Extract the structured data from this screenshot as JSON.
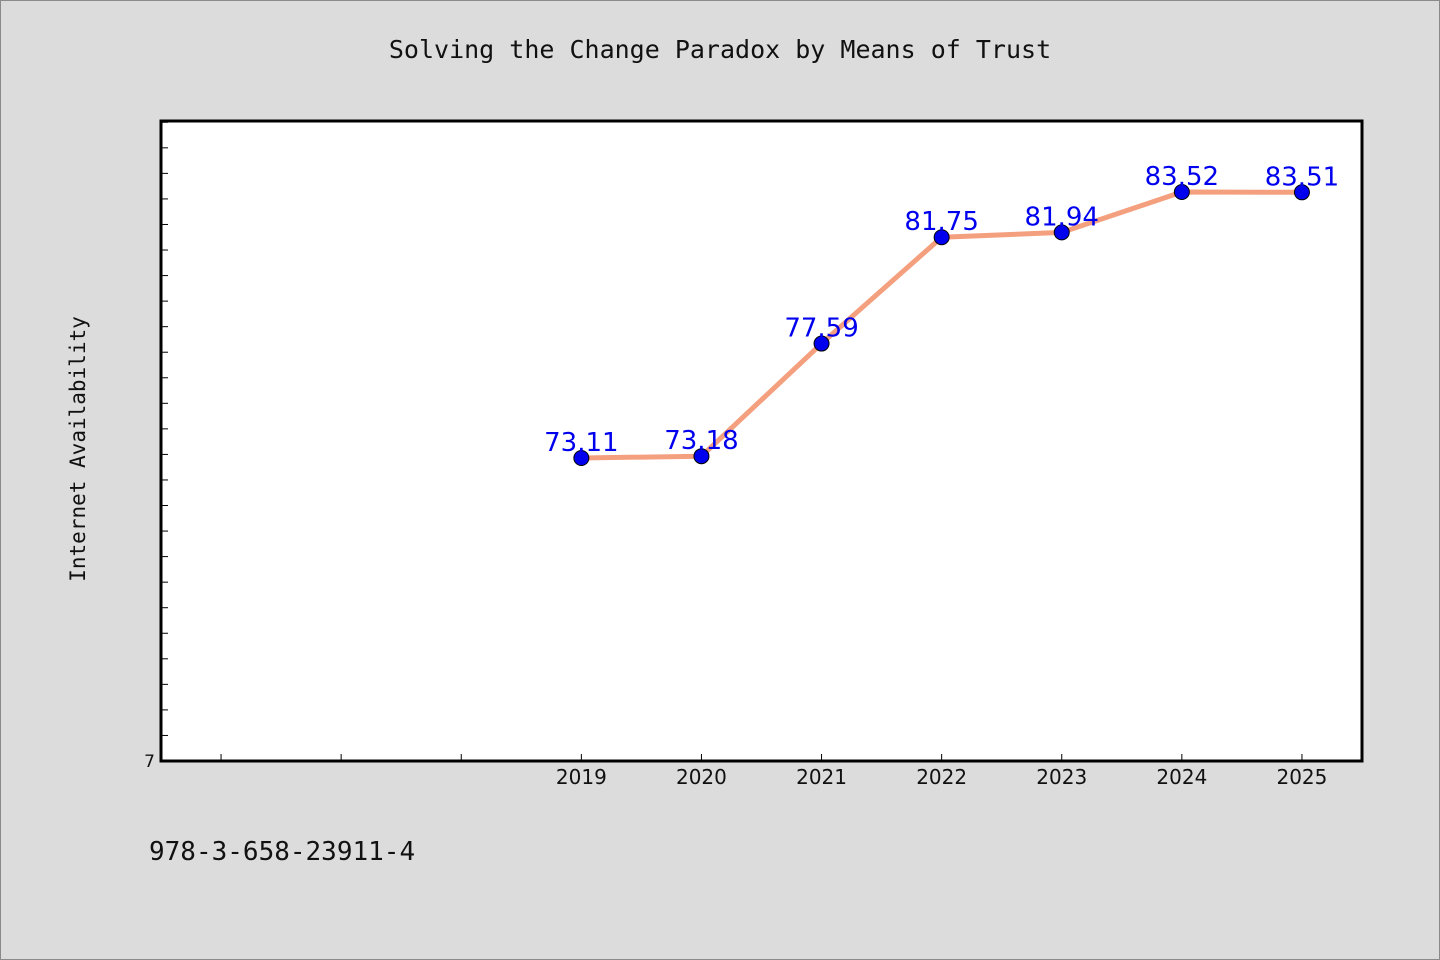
{
  "chart_data": {
    "type": "line",
    "title": "Solving the Change Paradox by Means of Trust",
    "xlabel": "",
    "ylabel": "Internet Availability",
    "categories": [
      "2019",
      "2020",
      "2021",
      "2022",
      "2023",
      "2024",
      "2025"
    ],
    "series": [
      {
        "values": [
          73.11,
          73.18,
          77.59,
          81.75,
          81.94,
          83.52,
          83.51
        ],
        "labels": [
          "73.11",
          "73.18",
          "77.59",
          "81.75",
          "81.94",
          "83.52",
          "83.51"
        ]
      }
    ],
    "ylim": [
      61.25,
      86.3
    ],
    "y_tick_labels": [
      {
        "value": 61.25,
        "label": "7"
      }
    ],
    "x_range": [
      2015.5,
      2025.5
    ],
    "grid": false,
    "legend": "none",
    "colors": {
      "line": "#f4a07e",
      "marker": "#0000ee",
      "data_label": "#0000ee",
      "plot_background": "#ffffff",
      "figure_background": "#dcdcdc"
    }
  },
  "footer": {
    "code": "978-3-658-23911-4"
  }
}
